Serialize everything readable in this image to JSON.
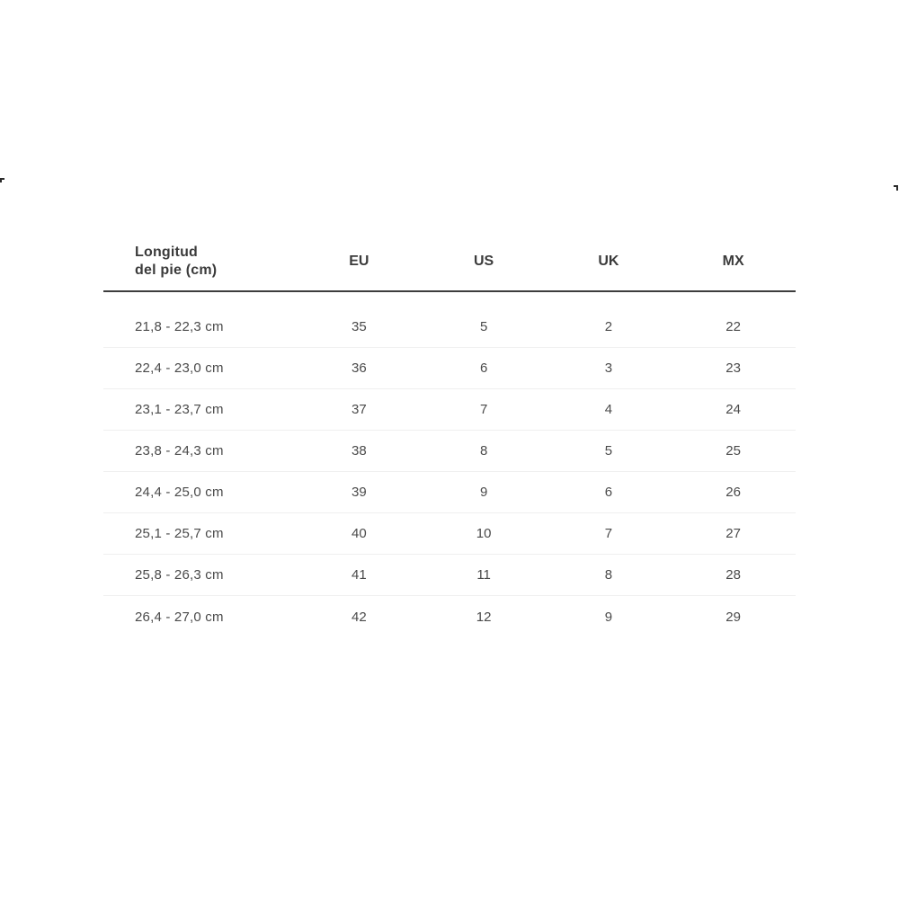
{
  "page": {
    "background": "#ffffff"
  },
  "colors": {
    "header_text": "#3b3b3b",
    "body_text": "#4a4a4a",
    "header_rule": "#3d3d3d",
    "row_divider": "#f0f0f0",
    "edge_artifact": "#2b2b2b"
  },
  "table": {
    "header": {
      "foot_length": {
        "line1": "Longitud",
        "line2": "del pie (cm)"
      },
      "columns": [
        "EU",
        "US",
        "UK",
        "MX"
      ]
    },
    "rows": [
      {
        "foot": "21,8 - 22,3 cm",
        "eu": "35",
        "us": "5",
        "uk": "2",
        "mx": "22"
      },
      {
        "foot": "22,4 - 23,0 cm",
        "eu": "36",
        "us": "6",
        "uk": "3",
        "mx": "23"
      },
      {
        "foot": "23,1 - 23,7 cm",
        "eu": "37",
        "us": "7",
        "uk": "4",
        "mx": "24"
      },
      {
        "foot": "23,8 - 24,3 cm",
        "eu": "38",
        "us": "8",
        "uk": "5",
        "mx": "25"
      },
      {
        "foot": "24,4 - 25,0 cm",
        "eu": "39",
        "us": "9",
        "uk": "6",
        "mx": "26"
      },
      {
        "foot": "25,1 - 25,7 cm",
        "eu": "40",
        "us": "10",
        "uk": "7",
        "mx": "27"
      },
      {
        "foot": "25,8 - 26,3 cm",
        "eu": "41",
        "us": "11",
        "uk": "8",
        "mx": "28"
      },
      {
        "foot": "26,4 - 27,0 cm",
        "eu": "42",
        "us": "12",
        "uk": "9",
        "mx": "29"
      }
    ]
  }
}
